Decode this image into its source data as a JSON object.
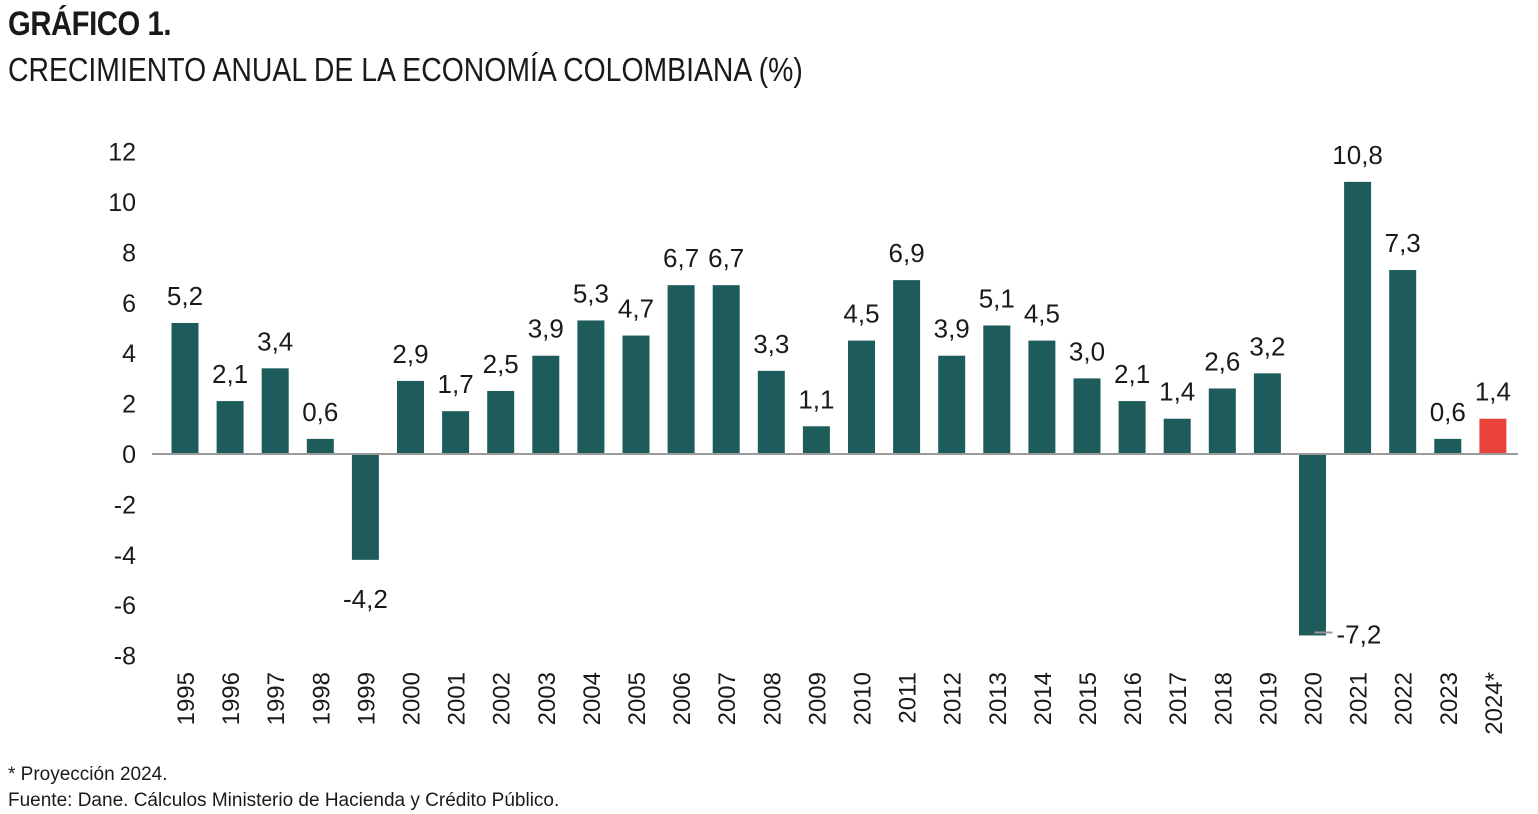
{
  "header": {
    "figure_number": "GRÁFICO 1.",
    "title": "CRECIMIENTO ANUAL DE LA ECONOMÍA COLOMBIANA (%)"
  },
  "chart_data": {
    "type": "bar",
    "title": "CRECIMIENTO ANUAL DE LA ECONOMÍA COLOMBIANA (%)",
    "xlabel": "",
    "ylabel": "",
    "ylim": [
      -8,
      12
    ],
    "yticks": [
      12,
      10,
      8,
      6,
      4,
      2,
      0,
      -2,
      -4,
      -6,
      -8
    ],
    "grid": false,
    "categories": [
      "1995",
      "1996",
      "1997",
      "1998",
      "1999",
      "2000",
      "2001",
      "2002",
      "2003",
      "2004",
      "2005",
      "2006",
      "2007",
      "2008",
      "2009",
      "2010",
      "2011",
      "2012",
      "2013",
      "2014",
      "2015",
      "2016",
      "2017",
      "2018",
      "2019",
      "2020",
      "2021",
      "2022",
      "2023",
      "2024*"
    ],
    "values": [
      5.2,
      2.1,
      3.4,
      0.6,
      -4.2,
      2.9,
      1.7,
      2.5,
      3.9,
      5.3,
      4.7,
      6.7,
      6.7,
      3.3,
      1.1,
      4.5,
      6.9,
      3.9,
      5.1,
      4.5,
      3.0,
      2.1,
      1.4,
      2.6,
      3.2,
      -7.2,
      10.8,
      7.3,
      0.6,
      1.4
    ],
    "labels": [
      "5,2",
      "2,1",
      "3,4",
      "0,6",
      "-4,2",
      "2,9",
      "1,7",
      "2,5",
      "3,9",
      "5,3",
      "4,7",
      "6,7",
      "6,7",
      "3,3",
      "1,1",
      "4,5",
      "6,9",
      "3,9",
      "5,1",
      "4,5",
      "3,0",
      "2,1",
      "1,4",
      "2,6",
      "3,2",
      "-7,2",
      "10,8",
      "7,3",
      "0,6",
      "1,4"
    ],
    "highlight_index": 29,
    "colors": {
      "bar": "#1e5b5b",
      "highlight": "#e8423a",
      "axis": "#9a9a9a",
      "text": "#1a1a1a"
    }
  },
  "notes": {
    "projection": "* Proyección 2024.",
    "source": "Fuente: Dane. Cálculos Ministerio de Hacienda y Crédito Público."
  }
}
